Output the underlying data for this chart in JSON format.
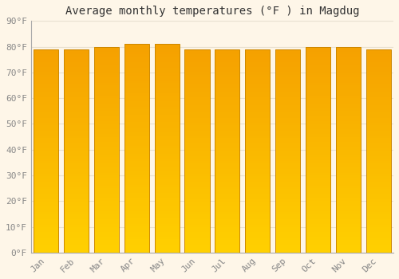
{
  "title": "Average monthly temperatures (°F ) in Magdug",
  "months": [
    "Jan",
    "Feb",
    "Mar",
    "Apr",
    "May",
    "Jun",
    "Jul",
    "Aug",
    "Sep",
    "Oct",
    "Nov",
    "Dec"
  ],
  "values": [
    79,
    79,
    80,
    81,
    81,
    79,
    79,
    79,
    79,
    80,
    80,
    79
  ],
  "bar_color_top": "#F5A000",
  "bar_color_bottom": "#FFD000",
  "bar_edge_color": "#CC8800",
  "background_color": "#FEF6E8",
  "plot_bg_color": "#FEF6E8",
  "grid_color": "#E8E0D0",
  "ylim": [
    0,
    90
  ],
  "ytick_step": 10,
  "title_fontsize": 10,
  "tick_fontsize": 8,
  "tick_color": "#888888",
  "title_color": "#333333",
  "font_family": "monospace",
  "bar_width": 0.82
}
